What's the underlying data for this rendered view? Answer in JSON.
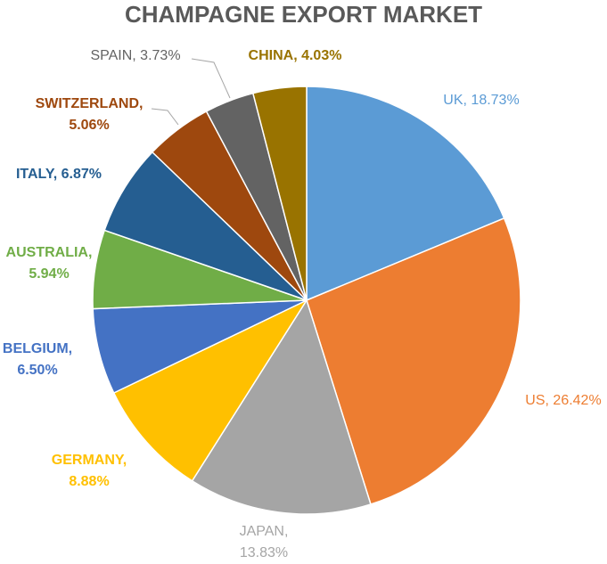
{
  "chart_data": {
    "type": "pie",
    "title": "CHAMPAGNE EXPORT MARKET",
    "values": [
      18.73,
      26.42,
      13.83,
      8.88,
      6.5,
      5.94,
      6.87,
      5.06,
      3.73,
      4.03
    ],
    "value_labels": [
      "UK, 18.73%",
      "US, 26.42%",
      "JAPAN, 13.83%",
      "GERMANY, 8.88%",
      "BELGIUM, 6.50%",
      "AUSTRALIA, 5.94%",
      "ITALY, 6.87%",
      "SWITZERLAND, 5.06%",
      "SPAIN, 3.73%",
      "CHINA, 4.03%"
    ],
    "colors": [
      "#5b9bd5",
      "#ed7d31",
      "#a5a5a5",
      "#ffc000",
      "#4472c4",
      "#70ad47",
      "#255e91",
      "#9e480e",
      "#636363",
      "#997300"
    ]
  }
}
